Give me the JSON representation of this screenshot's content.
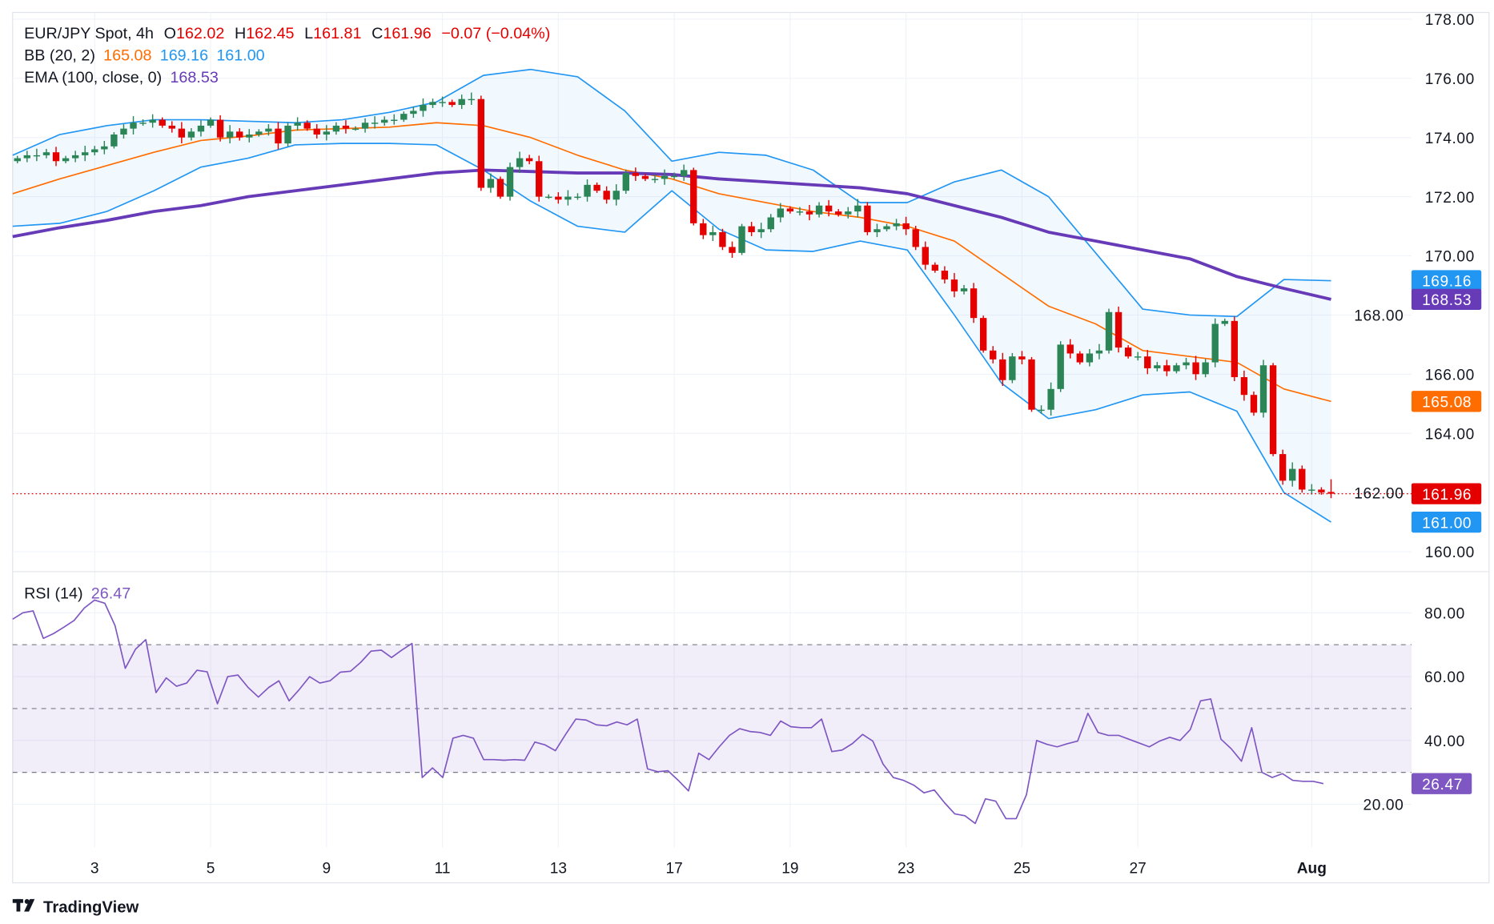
{
  "header": {
    "symbol": "EUR/JPY Spot, 4h",
    "o_label": "O",
    "o": "162.02",
    "h_label": "H",
    "h": "162.45",
    "l_label": "L",
    "l": "161.81",
    "c_label": "C",
    "c": "161.96",
    "change": "−0.07 (−0.04%)",
    "bb_label": "BB (20, 2)",
    "bb_mid": "165.08",
    "bb_upper": "169.16",
    "bb_lower": "161.00",
    "ema_label": "EMA (100, close, 0)",
    "ema": "168.53",
    "rsi_label": "RSI (14)",
    "rsi": "26.47"
  },
  "badges": {
    "bb_upper": "169.16",
    "ema": "168.53",
    "bb_mid": "165.08",
    "last": "161.96",
    "bb_lower": "161.00",
    "rsi": "26.47"
  },
  "brand": {
    "name": "TradingView"
  },
  "colors": {
    "up": "#2b8556",
    "down": "#e50000",
    "bb_band": "#2196f3",
    "bb_mid": "#ff6d00",
    "ema": "#673ab7",
    "rsi": "#7e57c2",
    "last_price": "#e50000"
  },
  "chart_data": [
    {
      "type": "candlestick",
      "title": "EUR/JPY Spot, 4h",
      "x_tick_labels": [
        "3",
        "5",
        "9",
        "11",
        "13",
        "17",
        "19",
        "23",
        "25",
        "27",
        "Aug"
      ],
      "y_ticks": [
        "160.00",
        "162.00",
        "164.00",
        "166.00",
        "168.00",
        "170.00",
        "172.00",
        "174.00",
        "176.00",
        "178.00"
      ],
      "ylim": [
        160,
        178
      ],
      "grid": true,
      "last_candle": {
        "open": 162.02,
        "high": 162.45,
        "low": 161.81,
        "close": 161.96
      },
      "closes": [
        173.3,
        173.4,
        173.4,
        173.5,
        173.2,
        173.3,
        173.4,
        173.5,
        173.6,
        173.7,
        174.1,
        174.3,
        174.5,
        174.5,
        174.6,
        174.4,
        174.3,
        174.0,
        174.2,
        174.4,
        174.6,
        174.0,
        174.2,
        174.0,
        174.1,
        174.2,
        174.3,
        173.8,
        174.4,
        174.5,
        174.3,
        174.1,
        174.2,
        174.4,
        174.3,
        174.3,
        174.5,
        174.5,
        174.6,
        174.6,
        174.8,
        174.9,
        175.1,
        175.2,
        175.2,
        175.1,
        175.3,
        175.3,
        172.3,
        172.6,
        172.0,
        173.0,
        173.3,
        173.2,
        172.0,
        172.0,
        171.9,
        172.0,
        172.0,
        172.4,
        172.2,
        171.9,
        172.2,
        172.8,
        172.7,
        172.6,
        172.6,
        172.7,
        172.7,
        172.9,
        171.1,
        170.7,
        170.8,
        170.3,
        170.1,
        171.0,
        170.8,
        170.9,
        171.3,
        171.6,
        171.5,
        171.5,
        171.4,
        171.7,
        171.5,
        171.4,
        171.5,
        171.7,
        170.8,
        170.9,
        171.0,
        171.1,
        170.9,
        170.3,
        169.7,
        169.5,
        169.2,
        168.8,
        168.9,
        167.9,
        166.8,
        166.5,
        165.8,
        166.6,
        166.5,
        164.8,
        164.8,
        165.5,
        167.0,
        166.7,
        166.4,
        166.7,
        166.8,
        168.1,
        166.9,
        166.6,
        166.6,
        166.2,
        166.3,
        166.1,
        166.3,
        166.4,
        166.0,
        166.4,
        167.7,
        167.8,
        165.9,
        165.3,
        164.7,
        166.3,
        163.3,
        162.4,
        162.8,
        162.1,
        162.1,
        162.0,
        161.96
      ],
      "bb_upper": [
        173.4,
        174.1,
        174.4,
        174.6,
        174.6,
        174.55,
        174.5,
        174.6,
        174.85,
        175.2,
        176.1,
        176.3,
        176.05,
        174.9,
        173.2,
        173.5,
        173.4,
        172.9,
        171.8,
        171.8,
        172.5,
        172.9,
        172.0,
        170.1,
        168.2,
        168.0,
        167.95,
        169.2,
        169.16
      ],
      "bb_mid": [
        172.1,
        172.6,
        173.05,
        173.5,
        173.9,
        174.05,
        174.25,
        174.3,
        174.35,
        174.5,
        174.4,
        174.0,
        173.4,
        172.9,
        172.6,
        172.1,
        171.8,
        171.5,
        171.3,
        171.0,
        170.5,
        169.4,
        168.3,
        167.7,
        166.8,
        166.6,
        166.4,
        165.5,
        165.08
      ],
      "bb_lower": [
        171.0,
        171.1,
        171.5,
        172.2,
        173.0,
        173.3,
        173.75,
        173.8,
        173.8,
        173.75,
        172.9,
        171.85,
        171.0,
        170.8,
        172.2,
        170.9,
        170.2,
        170.15,
        170.5,
        170.2,
        168.0,
        165.7,
        164.5,
        164.8,
        165.3,
        165.4,
        164.75,
        162.0,
        161.0
      ],
      "ema": [
        170.65,
        170.95,
        171.2,
        171.5,
        171.7,
        172.0,
        172.2,
        172.4,
        172.6,
        172.8,
        172.9,
        172.85,
        172.8,
        172.8,
        172.75,
        172.6,
        172.5,
        172.4,
        172.3,
        172.1,
        171.7,
        171.3,
        170.8,
        170.5,
        170.2,
        169.9,
        169.3,
        168.9,
        168.53
      ]
    },
    {
      "type": "line",
      "title": "RSI (14)",
      "y_ticks": [
        "20.00",
        "40.00",
        "60.00",
        "80.00"
      ],
      "levels": [
        30,
        50,
        70
      ],
      "ylim": [
        0,
        90
      ],
      "values": [
        78,
        80,
        80.6,
        72,
        73.5,
        75.5,
        77.6,
        81.5,
        84,
        83,
        76,
        62.6,
        68.6,
        71.6,
        55,
        59.6,
        57,
        58,
        62,
        61.5,
        51.5,
        60,
        60.5,
        56.6,
        53.6,
        56.6,
        58.7,
        52.4,
        56,
        60,
        58,
        58.7,
        61.4,
        61.7,
        64.5,
        68,
        68.3,
        66,
        68.3,
        70.4,
        28.4,
        31.4,
        28.4,
        40.7,
        41.6,
        40.7,
        34,
        34,
        33.8,
        34,
        33.8,
        39.5,
        38.6,
        36.8,
        41.9,
        46.7,
        46.4,
        44.9,
        44.6,
        45.8,
        44.9,
        46.7,
        31.1,
        30.2,
        30.5,
        27.5,
        24.2,
        36,
        34,
        38,
        41.6,
        43.7,
        42.8,
        42.5,
        41.6,
        46.1,
        44.3,
        44,
        44,
        46.7,
        36.5,
        37,
        39,
        41.9,
        39.8,
        32.6,
        28.4,
        27.5,
        26,
        23.6,
        24.5,
        20.5,
        17,
        16.4,
        14,
        21.7,
        21,
        15.5,
        15.5,
        23,
        40,
        38.8,
        38,
        39,
        39.8,
        48.5,
        42.5,
        41.6,
        41.6,
        40.4,
        39.2,
        38,
        39.8,
        41,
        40,
        43.4,
        52.4,
        53,
        40.4,
        37.4,
        33.5,
        44,
        30,
        28.4,
        29.6,
        27.5,
        27.2,
        27.2,
        26.47
      ]
    }
  ]
}
